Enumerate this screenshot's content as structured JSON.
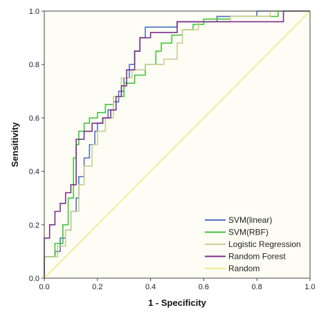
{
  "chart_data": {
    "type": "line",
    "title": "",
    "xlabel": "1 - Specificity",
    "ylabel": "Sensitivity",
    "xlim": [
      0,
      1
    ],
    "ylim": [
      0,
      1
    ],
    "xticks": [
      "0.0",
      "0.2",
      "0.4",
      "0.6",
      "0.8",
      "1.0"
    ],
    "yticks": [
      "0.0",
      "0.2",
      "0.4",
      "0.6",
      "0.8",
      "1.0"
    ],
    "grid": false,
    "legend_position": "bottom-right",
    "plot_background": "#fdfdf5",
    "series": [
      {
        "name": "SVM(linear)",
        "color": "#4f6fc4",
        "points": [
          [
            0,
            0
          ],
          [
            0,
            0.08
          ],
          [
            0.04,
            0.08
          ],
          [
            0.04,
            0.1
          ],
          [
            0.06,
            0.1
          ],
          [
            0.06,
            0.15
          ],
          [
            0.08,
            0.15
          ],
          [
            0.08,
            0.18
          ],
          [
            0.1,
            0.18
          ],
          [
            0.1,
            0.25
          ],
          [
            0.12,
            0.25
          ],
          [
            0.12,
            0.3
          ],
          [
            0.13,
            0.3
          ],
          [
            0.13,
            0.38
          ],
          [
            0.15,
            0.38
          ],
          [
            0.15,
            0.45
          ],
          [
            0.17,
            0.45
          ],
          [
            0.17,
            0.5
          ],
          [
            0.19,
            0.5
          ],
          [
            0.19,
            0.55
          ],
          [
            0.2,
            0.55
          ],
          [
            0.2,
            0.58
          ],
          [
            0.22,
            0.58
          ],
          [
            0.22,
            0.6
          ],
          [
            0.24,
            0.6
          ],
          [
            0.24,
            0.63
          ],
          [
            0.26,
            0.63
          ],
          [
            0.26,
            0.66
          ],
          [
            0.28,
            0.66
          ],
          [
            0.28,
            0.7
          ],
          [
            0.3,
            0.7
          ],
          [
            0.3,
            0.75
          ],
          [
            0.32,
            0.75
          ],
          [
            0.32,
            0.8
          ],
          [
            0.34,
            0.8
          ],
          [
            0.34,
            0.85
          ],
          [
            0.36,
            0.85
          ],
          [
            0.36,
            0.9
          ],
          [
            0.38,
            0.9
          ],
          [
            0.38,
            0.94
          ],
          [
            0.5,
            0.94
          ],
          [
            0.5,
            0.96
          ],
          [
            0.65,
            0.96
          ],
          [
            0.65,
            0.98
          ],
          [
            0.8,
            0.98
          ],
          [
            0.8,
            1.0
          ],
          [
            1.0,
            1.0
          ]
        ]
      },
      {
        "name": "SVM(RBF)",
        "color": "#43c43b",
        "points": [
          [
            0,
            0
          ],
          [
            0,
            0.08
          ],
          [
            0.04,
            0.08
          ],
          [
            0.04,
            0.13
          ],
          [
            0.07,
            0.13
          ],
          [
            0.07,
            0.2
          ],
          [
            0.09,
            0.2
          ],
          [
            0.09,
            0.3
          ],
          [
            0.11,
            0.3
          ],
          [
            0.11,
            0.45
          ],
          [
            0.12,
            0.45
          ],
          [
            0.12,
            0.5
          ],
          [
            0.13,
            0.5
          ],
          [
            0.13,
            0.55
          ],
          [
            0.15,
            0.55
          ],
          [
            0.15,
            0.58
          ],
          [
            0.17,
            0.58
          ],
          [
            0.17,
            0.6
          ],
          [
            0.2,
            0.6
          ],
          [
            0.2,
            0.62
          ],
          [
            0.23,
            0.62
          ],
          [
            0.23,
            0.65
          ],
          [
            0.26,
            0.65
          ],
          [
            0.26,
            0.68
          ],
          [
            0.3,
            0.68
          ],
          [
            0.3,
            0.73
          ],
          [
            0.34,
            0.73
          ],
          [
            0.34,
            0.76
          ],
          [
            0.38,
            0.76
          ],
          [
            0.38,
            0.8
          ],
          [
            0.42,
            0.8
          ],
          [
            0.42,
            0.85
          ],
          [
            0.44,
            0.85
          ],
          [
            0.44,
            0.88
          ],
          [
            0.48,
            0.88
          ],
          [
            0.48,
            0.91
          ],
          [
            0.52,
            0.91
          ],
          [
            0.52,
            0.93
          ],
          [
            0.56,
            0.93
          ],
          [
            0.56,
            0.95
          ],
          [
            0.6,
            0.95
          ],
          [
            0.6,
            0.97
          ],
          [
            0.7,
            0.97
          ],
          [
            0.7,
            0.98
          ],
          [
            0.88,
            0.98
          ],
          [
            0.88,
            1.0
          ],
          [
            1.0,
            1.0
          ]
        ]
      },
      {
        "name": "Logistic Regression",
        "color": "#c6cf8f",
        "points": [
          [
            0,
            0
          ],
          [
            0,
            0.08
          ],
          [
            0.05,
            0.08
          ],
          [
            0.05,
            0.12
          ],
          [
            0.08,
            0.12
          ],
          [
            0.08,
            0.18
          ],
          [
            0.1,
            0.18
          ],
          [
            0.1,
            0.25
          ],
          [
            0.13,
            0.25
          ],
          [
            0.13,
            0.35
          ],
          [
            0.15,
            0.35
          ],
          [
            0.15,
            0.42
          ],
          [
            0.18,
            0.42
          ],
          [
            0.18,
            0.5
          ],
          [
            0.2,
            0.5
          ],
          [
            0.2,
            0.55
          ],
          [
            0.23,
            0.55
          ],
          [
            0.23,
            0.6
          ],
          [
            0.26,
            0.6
          ],
          [
            0.26,
            0.68
          ],
          [
            0.29,
            0.68
          ],
          [
            0.29,
            0.75
          ],
          [
            0.33,
            0.75
          ],
          [
            0.33,
            0.78
          ],
          [
            0.38,
            0.78
          ],
          [
            0.38,
            0.8
          ],
          [
            0.45,
            0.8
          ],
          [
            0.45,
            0.82
          ],
          [
            0.5,
            0.82
          ],
          [
            0.5,
            0.88
          ],
          [
            0.52,
            0.88
          ],
          [
            0.52,
            0.93
          ],
          [
            0.58,
            0.93
          ],
          [
            0.58,
            0.96
          ],
          [
            0.7,
            0.96
          ],
          [
            0.7,
            0.98
          ],
          [
            0.85,
            0.98
          ],
          [
            0.85,
            1.0
          ],
          [
            1.0,
            1.0
          ]
        ]
      },
      {
        "name": "Random Forest",
        "color": "#7a2d8c",
        "points": [
          [
            0,
            0
          ],
          [
            0,
            0.15
          ],
          [
            0.02,
            0.15
          ],
          [
            0.02,
            0.2
          ],
          [
            0.04,
            0.2
          ],
          [
            0.04,
            0.25
          ],
          [
            0.06,
            0.25
          ],
          [
            0.06,
            0.28
          ],
          [
            0.08,
            0.28
          ],
          [
            0.08,
            0.32
          ],
          [
            0.1,
            0.32
          ],
          [
            0.1,
            0.35
          ],
          [
            0.12,
            0.35
          ],
          [
            0.12,
            0.52
          ],
          [
            0.15,
            0.52
          ],
          [
            0.15,
            0.55
          ],
          [
            0.18,
            0.55
          ],
          [
            0.18,
            0.58
          ],
          [
            0.22,
            0.58
          ],
          [
            0.22,
            0.6
          ],
          [
            0.25,
            0.6
          ],
          [
            0.25,
            0.63
          ],
          [
            0.27,
            0.63
          ],
          [
            0.27,
            0.68
          ],
          [
            0.29,
            0.68
          ],
          [
            0.29,
            0.72
          ],
          [
            0.31,
            0.72
          ],
          [
            0.31,
            0.78
          ],
          [
            0.34,
            0.78
          ],
          [
            0.34,
            0.85
          ],
          [
            0.36,
            0.85
          ],
          [
            0.36,
            0.9
          ],
          [
            0.4,
            0.9
          ],
          [
            0.4,
            0.92
          ],
          [
            0.5,
            0.92
          ],
          [
            0.5,
            0.96
          ],
          [
            0.9,
            0.96
          ],
          [
            0.9,
            1.0
          ],
          [
            1.0,
            1.0
          ]
        ]
      },
      {
        "name": "Random",
        "color": "#f0ea8a",
        "points": [
          [
            0,
            0
          ],
          [
            1.0,
            1.0
          ]
        ]
      }
    ]
  }
}
